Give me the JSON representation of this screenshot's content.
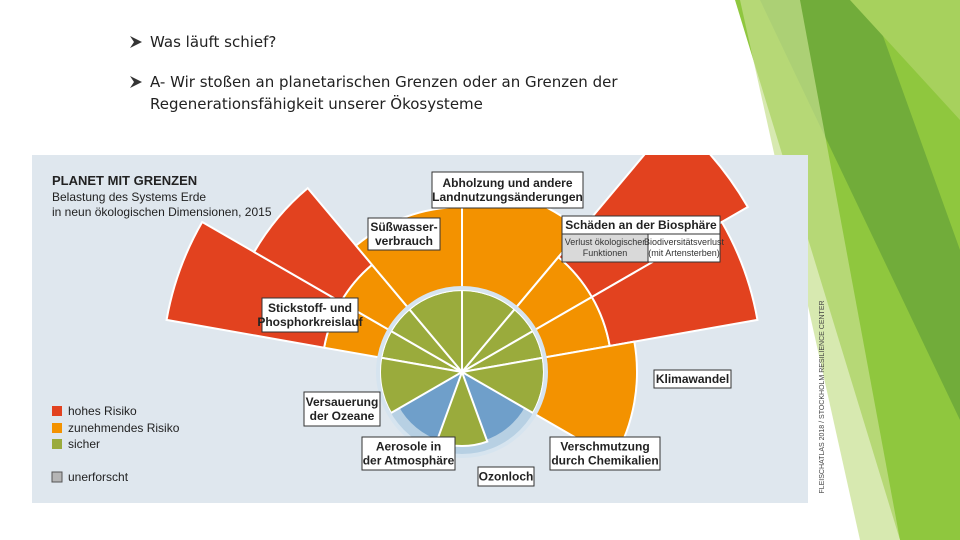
{
  "bullets": [
    "Was läuft schief?",
    "A- Wir stoßen an planetarischen Grenzen oder an Grenzen der Regenerationsfähigkeit unserer Ökosysteme"
  ],
  "infographic": {
    "title": "PLANET MIT GRENZEN",
    "subtitle": [
      "Belastung des Systems Erde",
      "in neun ökologischen Dimensionen, 2015"
    ],
    "dimensions": [
      {
        "lines": [
          "Abholzung und andere",
          "Landnutzungsänderungen"
        ]
      },
      {
        "lines": [
          "Süßwasser-",
          "verbrauch"
        ]
      },
      {
        "lines": [
          "Schäden an der Biosphäre"
        ]
      },
      {
        "lines": [
          "Stickstoff- und",
          "Phosphorkreislauf"
        ]
      },
      {
        "lines": [
          "Klimawandel"
        ]
      },
      {
        "lines": [
          "Versauerung",
          "der Ozeane"
        ]
      },
      {
        "lines": [
          "Aerosole in",
          "der Atmosphäre"
        ]
      },
      {
        "lines": [
          "Verschmutzung",
          "durch Chemikalien"
        ]
      },
      {
        "lines": [
          "Ozonloch"
        ]
      }
    ],
    "biosphere_parts": [
      {
        "lines": [
          "Verlust ökologischer",
          "Funktionen"
        ]
      },
      {
        "lines": [
          "Biodiversitätsverlust",
          "(mit Artensterben)"
        ]
      }
    ],
    "legend": [
      "hohes Risiko",
      "zunehmendes Risiko",
      "sicher",
      "unerforscht"
    ],
    "credit": "FLEISCHATLAS 2018 / STOCKHOLM RESILIENCE CENTER"
  }
}
